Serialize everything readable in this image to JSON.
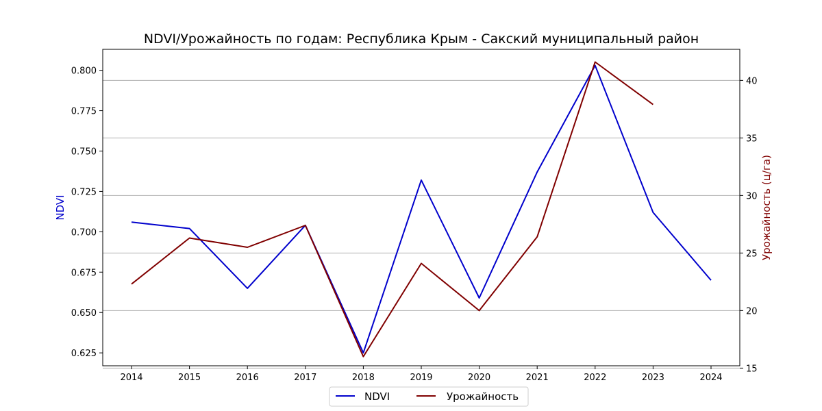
{
  "chart_data": {
    "type": "line",
    "title": "NDVI/Урожайность по годам: Республика Крым - Сакский муниципальный район",
    "x": [
      "2014",
      "2015",
      "2016",
      "2017",
      "2018",
      "2019",
      "2020",
      "2021",
      "2022",
      "2023",
      "2024"
    ],
    "left_axis": {
      "label": "NDVI",
      "color": "#0000cc",
      "range": [
        0.617,
        0.813
      ],
      "ticks": [
        "0.625",
        "0.650",
        "0.675",
        "0.700",
        "0.725",
        "0.750",
        "0.775",
        "0.800"
      ]
    },
    "right_axis": {
      "label": "Урожайность (ц/га)",
      "color": "#800000",
      "range": [
        15.2,
        42.7
      ],
      "ticks": [
        "15",
        "20",
        "25",
        "30",
        "35",
        "40"
      ]
    },
    "series": [
      {
        "name": "NDVI",
        "axis": "left",
        "color": "#0000cc",
        "values": [
          0.706,
          0.702,
          0.665,
          0.704,
          0.625,
          0.732,
          0.659,
          0.737,
          0.803,
          0.712,
          0.67
        ]
      },
      {
        "name": "Урожайность",
        "axis": "right",
        "color": "#800000",
        "values": [
          22.3,
          26.3,
          25.5,
          27.4,
          16.0,
          24.1,
          20.0,
          26.4,
          41.6,
          37.9,
          null
        ]
      }
    ],
    "grid": "horizontal (right axis ticks)",
    "legend": "bottom-center"
  }
}
